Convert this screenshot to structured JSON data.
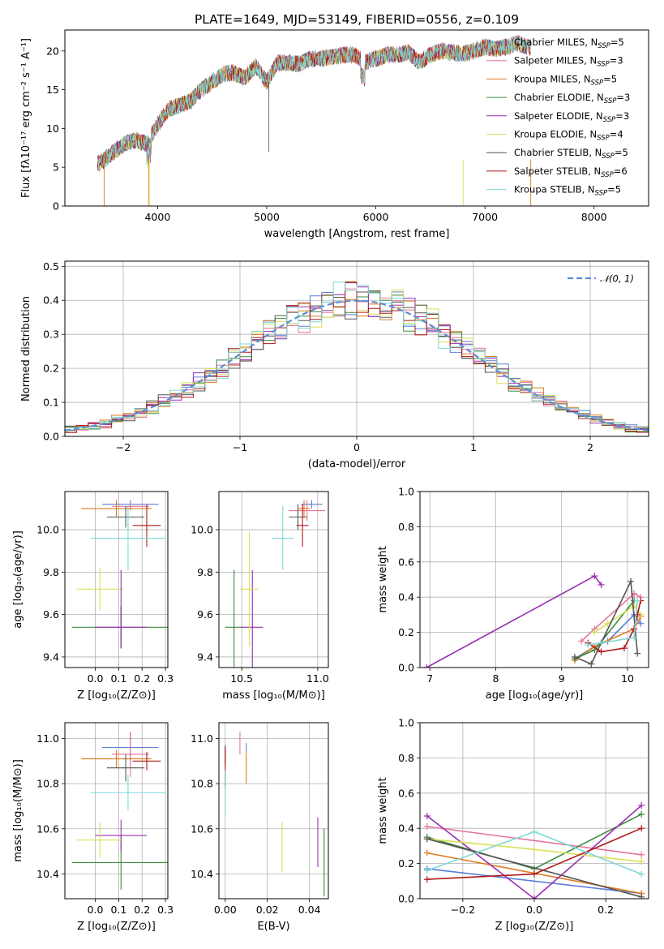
{
  "colors": {
    "Chabrier MILES": "#5b7fd6",
    "Salpeter MILES": "#e6749a",
    "Kroupa MILES": "#e07b1e",
    "Chabrier ELODIE": "#3f8a3f",
    "Salpeter ELODIE": "#9a2fb0",
    "Kroupa ELODIE": "#d8e05a",
    "Chabrier STELIB": "#555555",
    "Salpeter STELIB": "#b01818",
    "Kroupa STELIB": "#7fd8d8",
    "gaussian": "#5b8fd6"
  },
  "chart_data": [
    {
      "type": "line",
      "id": "spectrum",
      "title": "PLATE=1649, MJD=53149, FIBERID=0556, z=0.109",
      "xlabel": "wavelength [Angstrom, rest frame]",
      "ylabel": "Flux [fλ10⁻¹⁷ erg cm⁻² s⁻¹ A⁻¹]",
      "xlim": [
        3150,
        8500
      ],
      "ylim": [
        0,
        22.7
      ],
      "xticks": [
        4000,
        5000,
        6000,
        7000,
        8000
      ],
      "yticks": [
        0,
        5,
        10,
        15,
        20
      ],
      "grid": false,
      "legend_position": "top-right",
      "x": [
        3450,
        3500,
        3600,
        3700,
        3800,
        3900,
        4000,
        4100,
        4200,
        4300,
        4400,
        4500,
        4600,
        4700,
        4800,
        4900,
        5000,
        5100,
        5200,
        5300,
        5400,
        5500,
        5600,
        5700,
        5800,
        5900,
        6000,
        6100,
        6200,
        6300,
        6400,
        6500,
        6600,
        6700,
        6800,
        6900,
        7000,
        7100,
        7200,
        7300,
        7400
      ],
      "y": [
        5.5,
        5.8,
        7.0,
        8.0,
        8.5,
        8.0,
        10.5,
        12.5,
        13.0,
        13.5,
        15.0,
        16.0,
        17.0,
        17.2,
        16.5,
        18.0,
        16.0,
        18.5,
        18.5,
        18.3,
        19.0,
        19.0,
        19.2,
        19.5,
        19.5,
        18.5,
        19.0,
        19.5,
        19.5,
        19.8,
        18.5,
        19.5,
        20.0,
        19.8,
        19.6,
        20.0,
        20.5,
        20.3,
        20.5,
        21.0,
        20.5
      ],
      "series": [
        {
          "name": "Chabrier MILES, N_SSP=5",
          "label_main": "Chabrier MILES, N",
          "label_sub": "SSP",
          "label_end": "=5"
        },
        {
          "name": "Salpeter MILES, N_SSP=3",
          "label_main": "Salpeter MILES, N",
          "label_sub": "SSP",
          "label_end": "=3"
        },
        {
          "name": "Kroupa MILES, N_SSP=5",
          "label_main": "Kroupa MILES, N",
          "label_sub": "SSP",
          "label_end": "=5"
        },
        {
          "name": "Chabrier ELODIE, N_SSP=3",
          "label_main": "Chabrier ELODIE, N",
          "label_sub": "SSP",
          "label_end": "=3"
        },
        {
          "name": "Salpeter ELODIE, N_SSP=3",
          "label_main": "Salpeter ELODIE, N",
          "label_sub": "SSP",
          "label_end": "=3"
        },
        {
          "name": "Kroupa ELODIE, N_SSP=4",
          "label_main": "Kroupa ELODIE, N",
          "label_sub": "SSP",
          "label_end": "=4"
        },
        {
          "name": "Chabrier STELIB, N_SSP=5",
          "label_main": "Chabrier STELIB, N",
          "label_sub": "SSP",
          "label_end": "=5"
        },
        {
          "name": "Salpeter STELIB, N_SSP=6",
          "label_main": "Salpeter STELIB, N",
          "label_sub": "SSP",
          "label_end": "=6"
        },
        {
          "name": "Kroupa STELIB, N_SSP=5",
          "label_main": "Kroupa STELIB, N",
          "label_sub": "SSP",
          "label_end": "=5"
        }
      ]
    },
    {
      "type": "line",
      "id": "residuals",
      "xlabel": "(data-model)/error",
      "ylabel": "Normed distribution",
      "xlim": [
        -2.5,
        2.5
      ],
      "ylim": [
        0,
        0.515
      ],
      "xticks": [
        -2,
        -1,
        0,
        1,
        2
      ],
      "xtick_labels": [
        "−2",
        "−1",
        "0",
        "1",
        "2"
      ],
      "yticks": [
        0.0,
        0.1,
        0.2,
        0.3,
        0.4,
        0.5
      ],
      "ytick_labels": [
        "0.0",
        "0.1",
        "0.2",
        "0.3",
        "0.4",
        "0.5"
      ],
      "grid": true,
      "legend_position": "top-right",
      "legend_label": "𝒩(0, 1)",
      "bin_width": 0.1,
      "gaussian": {
        "mean": 0,
        "sigma": 1
      }
    },
    {
      "type": "scatter",
      "id": "age-vs-Z",
      "xlabel": "Z [log₁₀(Z/Z⊙)]",
      "ylabel": "age  [log₁₀(age/yr)]",
      "xlim": [
        -0.13,
        0.31
      ],
      "ylim": [
        9.35,
        10.18
      ],
      "xticks": [
        0.0,
        0.1,
        0.2,
        0.3
      ],
      "xtick_labels": [
        "0.0",
        "0.1",
        "0.2",
        "0.3"
      ],
      "yticks": [
        9.4,
        9.6,
        9.8,
        10.0
      ],
      "ytick_labels": [
        "9.4",
        "9.6",
        "9.8",
        "10.0"
      ],
      "grid": true,
      "points": [
        {
          "series": "Chabrier MILES",
          "x": 0.15,
          "y": 10.12,
          "xerr": 0.12,
          "yerr": 0.02
        },
        {
          "series": "Salpeter MILES",
          "x": 0.15,
          "y": 10.11,
          "xerr": 0.08,
          "yerr": 0.02
        },
        {
          "series": "Kroupa MILES",
          "x": 0.09,
          "y": 10.1,
          "xerr": 0.15,
          "yerr": 0.04
        },
        {
          "series": "Chabrier ELODIE",
          "x": 0.11,
          "y": 9.54,
          "xerr": 0.21,
          "yerr": 0.1
        },
        {
          "series": "Salpeter ELODIE",
          "x": 0.11,
          "y": 9.54,
          "xerr": 0.11,
          "yerr": 0.1
        },
        {
          "series": "Kroupa ELODIE",
          "x": 0.02,
          "y": 9.72,
          "xerr": 0.1,
          "yerr": 0.1
        },
        {
          "series": "Chabrier STELIB",
          "x": 0.13,
          "y": 10.06,
          "xerr": 0.08,
          "yerr": 0.05
        },
        {
          "series": "Salpeter STELIB",
          "x": 0.22,
          "y": 10.02,
          "xerr": 0.06,
          "yerr": 0.1
        },
        {
          "series": "Kroupa STELIB",
          "x": 0.14,
          "y": 9.96,
          "xerr": 0.16,
          "yerr": 0.15
        },
        {
          "series": "Salpeter ELODIE",
          "x": 0.11,
          "y": 9.63,
          "xerr": 0.0,
          "yerr": 0.18
        }
      ]
    },
    {
      "type": "scatter",
      "id": "age-vs-mass",
      "xlabel": "mass [log₁₀(M/M⊙)]",
      "ylabel": "",
      "xlim": [
        10.35,
        11.07
      ],
      "ylim": [
        9.35,
        10.18
      ],
      "xticks": [
        10.5,
        11.0
      ],
      "xtick_labels": [
        "10.5",
        "11.0"
      ],
      "yticks": [
        9.4,
        9.6,
        9.8,
        10.0
      ],
      "ytick_labels": [
        "9.4",
        "9.6",
        "9.8",
        "10.0"
      ],
      "grid": true,
      "points": [
        {
          "series": "Chabrier MILES",
          "x": 10.96,
          "y": 10.12,
          "xerr": 0.07,
          "yerr": 0.02
        },
        {
          "series": "Salpeter MILES",
          "x": 10.93,
          "y": 10.09,
          "xerr": 0.12,
          "yerr": 0.05
        },
        {
          "series": "Kroupa MILES",
          "x": 10.91,
          "y": 10.1,
          "xerr": 0.04,
          "yerr": 0.04
        },
        {
          "series": "Chabrier ELODIE",
          "x": 10.45,
          "y": 9.54,
          "xerr": 0.06,
          "yerr": 0.27
        },
        {
          "series": "Salpeter ELODIE",
          "x": 10.57,
          "y": 9.54,
          "xerr": 0.07,
          "yerr": 0.27
        },
        {
          "series": "Kroupa ELODIE",
          "x": 10.55,
          "y": 9.72,
          "xerr": 0.06,
          "yerr": 0.27
        },
        {
          "series": "Chabrier STELIB",
          "x": 10.87,
          "y": 10.06,
          "xerr": 0.06,
          "yerr": 0.06
        },
        {
          "series": "Salpeter STELIB",
          "x": 10.9,
          "y": 10.02,
          "xerr": 0.04,
          "yerr": 0.1
        },
        {
          "series": "Kroupa STELIB",
          "x": 10.77,
          "y": 9.96,
          "xerr": 0.07,
          "yerr": 0.15
        }
      ]
    },
    {
      "type": "line",
      "id": "mass-weight-vs-age",
      "xlabel": "age  [log₁₀(age/yr)]",
      "ylabel": "mass weight",
      "xlim": [
        6.85,
        10.32
      ],
      "ylim": [
        0,
        1.0
      ],
      "xticks": [
        7,
        8,
        9,
        10
      ],
      "xtick_labels": [
        "7",
        "8",
        "9",
        "10"
      ],
      "yticks": [
        0.0,
        0.2,
        0.4,
        0.6,
        0.8,
        1.0
      ],
      "ytick_labels": [
        "0.0",
        "0.2",
        "0.4",
        "0.6",
        "0.8",
        "1.0"
      ],
      "grid": true,
      "series": [
        {
          "name": "Chabrier MILES",
          "x": [
            9.2,
            9.5,
            9.7,
            10.1,
            10.2
          ],
          "y": [
            0.05,
            0.12,
            0.15,
            0.3,
            0.25
          ]
        },
        {
          "name": "Salpeter MILES",
          "x": [
            9.3,
            9.5,
            10.1,
            10.2
          ],
          "y": [
            0.15,
            0.22,
            0.42,
            0.4
          ]
        },
        {
          "name": "Kroupa MILES",
          "x": [
            9.2,
            9.5,
            10.1,
            10.2
          ],
          "y": [
            0.04,
            0.12,
            0.22,
            0.29
          ]
        },
        {
          "name": "Chabrier ELODIE",
          "x": [
            9.2,
            9.5,
            10.1
          ],
          "y": [
            0.05,
            0.1,
            0.38
          ]
        },
        {
          "name": "Salpeter ELODIE",
          "x": [
            6.95,
            9.5,
            9.6
          ],
          "y": [
            0.0,
            0.52,
            0.47
          ]
        },
        {
          "name": "Kroupa ELODIE",
          "x": [
            9.5,
            9.7,
            10.1,
            10.2
          ],
          "y": [
            0.2,
            0.25,
            0.35,
            0.3
          ]
        },
        {
          "name": "Chabrier STELIB",
          "x": [
            9.2,
            9.45,
            9.6,
            10.05,
            10.15
          ],
          "y": [
            0.06,
            0.02,
            0.14,
            0.49,
            0.08
          ]
        },
        {
          "name": "Salpeter STELIB",
          "x": [
            9.4,
            9.6,
            9.95,
            10.1,
            10.15,
            10.2
          ],
          "y": [
            0.14,
            0.09,
            0.11,
            0.22,
            0.3,
            0.38
          ]
        },
        {
          "name": "Kroupa STELIB",
          "x": [
            9.4,
            9.6,
            10.1,
            10.15
          ],
          "y": [
            0.13,
            0.14,
            0.17,
            0.38
          ]
        }
      ]
    },
    {
      "type": "scatter",
      "id": "mass-vs-Z",
      "xlabel": "Z [log₁₀(Z/Z⊙)]",
      "ylabel": "mass [log₁₀(M/M⊙)]",
      "xlim": [
        -0.13,
        0.31
      ],
      "ylim": [
        10.29,
        11.07
      ],
      "xticks": [
        0.0,
        0.1,
        0.2,
        0.3
      ],
      "xtick_labels": [
        "0.0",
        "0.1",
        "0.2",
        "0.3"
      ],
      "yticks": [
        10.4,
        10.6,
        10.8,
        11.0
      ],
      "ytick_labels": [
        "10.4",
        "10.6",
        "10.8",
        "11.0"
      ],
      "grid": true,
      "points": [
        {
          "series": "Chabrier MILES",
          "x": 0.15,
          "y": 10.96,
          "xerr": 0.12,
          "yerr": 0.07
        },
        {
          "series": "Salpeter MILES",
          "x": 0.15,
          "y": 10.93,
          "xerr": 0.08,
          "yerr": 0.1
        },
        {
          "series": "Kroupa MILES",
          "x": 0.09,
          "y": 10.91,
          "xerr": 0.15,
          "yerr": 0.04
        },
        {
          "series": "Chabrier ELODIE",
          "x": 0.11,
          "y": 10.45,
          "xerr": 0.21,
          "yerr": 0.12
        },
        {
          "series": "Salpeter ELODIE",
          "x": 0.11,
          "y": 10.57,
          "xerr": 0.11,
          "yerr": 0.07
        },
        {
          "series": "Kroupa ELODIE",
          "x": 0.02,
          "y": 10.55,
          "xerr": 0.1,
          "yerr": 0.08
        },
        {
          "series": "Chabrier STELIB",
          "x": 0.13,
          "y": 10.87,
          "xerr": 0.08,
          "yerr": 0.06
        },
        {
          "series": "Salpeter STELIB",
          "x": 0.22,
          "y": 10.9,
          "xerr": 0.06,
          "yerr": 0.04
        },
        {
          "series": "Kroupa STELIB",
          "x": 0.14,
          "y": 10.76,
          "xerr": 0.16,
          "yerr": 0.08
        }
      ]
    },
    {
      "type": "scatter",
      "id": "mass-vs-EBV",
      "xlabel": "E(B-V)",
      "ylabel": "",
      "xlim": [
        -0.003,
        0.049
      ],
      "ylim": [
        10.29,
        11.07
      ],
      "xticks": [
        0.0,
        0.02,
        0.04
      ],
      "xtick_labels": [
        "0.00",
        "0.02",
        "0.04"
      ],
      "yticks": [
        10.4,
        10.6,
        10.8,
        11.0
      ],
      "ytick_labels": [
        "10.4",
        "10.6",
        "10.8",
        "11.0"
      ],
      "grid": true,
      "points": [
        {
          "series": "Chabrier MILES",
          "x": 0.01,
          "y": 10.96,
          "xerr": 0.0,
          "yerr": 0.02
        },
        {
          "series": "Salpeter MILES",
          "x": 0.007,
          "y": 10.98,
          "xerr": 0.0,
          "yerr": 0.05
        },
        {
          "series": "Kroupa MILES",
          "x": 0.01,
          "y": 10.87,
          "xerr": 0.0,
          "yerr": 0.07
        },
        {
          "series": "Chabrier ELODIE",
          "x": 0.047,
          "y": 10.45,
          "xerr": 0.0,
          "yerr": 0.15
        },
        {
          "series": "Salpeter ELODIE",
          "x": 0.044,
          "y": 10.54,
          "xerr": 0.0,
          "yerr": 0.11
        },
        {
          "series": "Kroupa ELODIE",
          "x": 0.027,
          "y": 10.52,
          "xerr": 0.0,
          "yerr": 0.11
        },
        {
          "series": "Chabrier STELIB",
          "x": 0.0,
          "y": 10.93,
          "xerr": 0.0,
          "yerr": 0.04
        },
        {
          "series": "Salpeter STELIB",
          "x": 0.0,
          "y": 10.87,
          "xerr": 0.0,
          "yerr": 0.09
        },
        {
          "series": "Kroupa STELIB",
          "x": 0.0,
          "y": 10.76,
          "xerr": 0.0,
          "yerr": 0.1
        }
      ]
    },
    {
      "type": "line",
      "id": "mass-weight-vs-Z",
      "xlabel": "Z [log₁₀(Z/Z⊙)]",
      "ylabel": "mass weight",
      "xlim": [
        -0.32,
        0.32
      ],
      "ylim": [
        0,
        1.0
      ],
      "xticks": [
        -0.2,
        0.0,
        0.2
      ],
      "xtick_labels": [
        "−0.2",
        "0.0",
        "0.2"
      ],
      "yticks": [
        0.0,
        0.2,
        0.4,
        0.6,
        0.8,
        1.0
      ],
      "ytick_labels": [
        "0.0",
        "0.2",
        "0.4",
        "0.6",
        "0.8",
        "1.0"
      ],
      "grid": true,
      "series": [
        {
          "name": "Chabrier MILES",
          "x": [
            -0.3,
            0.3
          ],
          "y": [
            0.17,
            0.03
          ]
        },
        {
          "name": "Salpeter MILES",
          "x": [
            -0.3,
            0.3
          ],
          "y": [
            0.41,
            0.25
          ]
        },
        {
          "name": "Kroupa MILES",
          "x": [
            -0.3,
            0.3
          ],
          "y": [
            0.26,
            0.03
          ]
        },
        {
          "name": "Chabrier ELODIE",
          "x": [
            -0.3,
            0.0,
            0.3
          ],
          "y": [
            0.35,
            0.17,
            0.48
          ]
        },
        {
          "name": "Salpeter ELODIE",
          "x": [
            -0.3,
            0.0,
            0.3
          ],
          "y": [
            0.47,
            0.0,
            0.53
          ]
        },
        {
          "name": "Kroupa ELODIE",
          "x": [
            -0.3,
            0.0,
            0.3
          ],
          "y": [
            0.34,
            0.28,
            0.21
          ]
        },
        {
          "name": "Chabrier STELIB",
          "x": [
            -0.3,
            0.3
          ],
          "y": [
            0.34,
            0.01
          ]
        },
        {
          "name": "Salpeter STELIB",
          "x": [
            -0.3,
            0.0,
            0.3
          ],
          "y": [
            0.11,
            0.14,
            0.4
          ]
        },
        {
          "name": "Kroupa STELIB",
          "x": [
            -0.3,
            0.0,
            0.3
          ],
          "y": [
            0.16,
            0.38,
            0.14
          ]
        }
      ]
    }
  ]
}
